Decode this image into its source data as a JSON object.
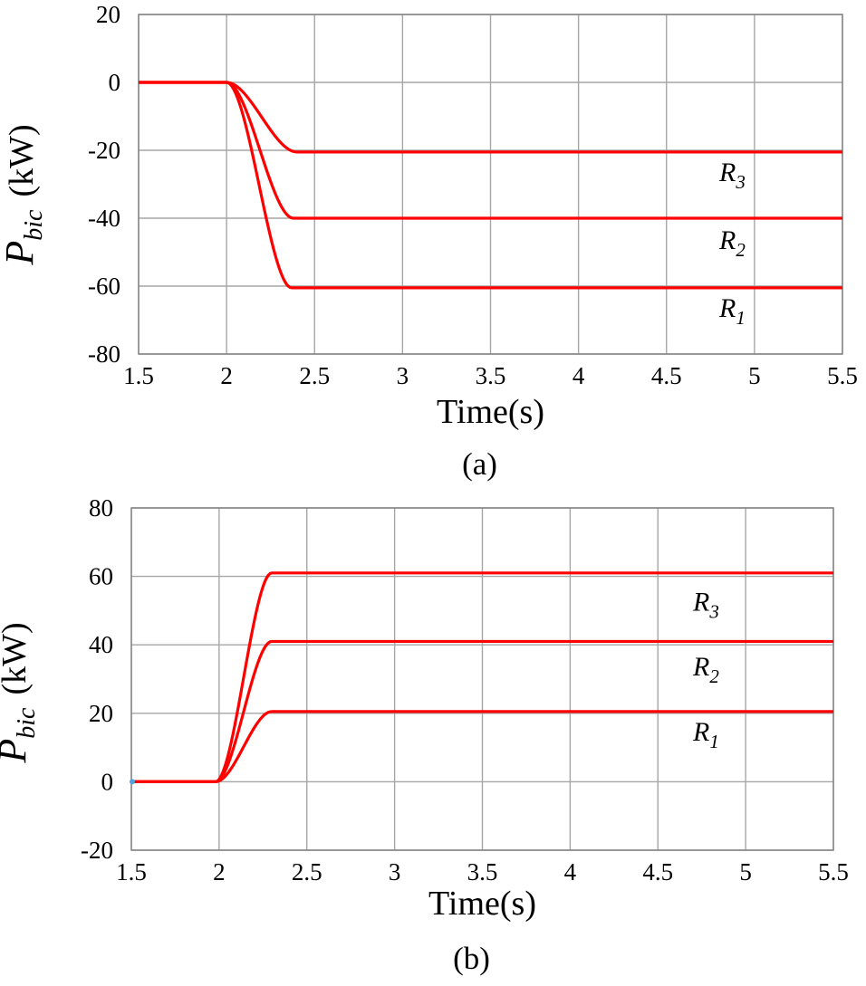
{
  "colors": {
    "series": "#ff0000",
    "grid": "#a6a6a6",
    "start_marker": "#4fa3e0"
  },
  "chart_data": [
    {
      "type": "line",
      "panel": "(a)",
      "xlabel": "Time(s)",
      "ylabel_main": "P",
      "ylabel_sub": "bic",
      "ylabel_unit": "(kW)",
      "xlim": [
        1.5,
        5.5
      ],
      "ylim": [
        -80,
        20
      ],
      "xticks": [
        1.5,
        2,
        2.5,
        3,
        3.5,
        4,
        4.5,
        5,
        5.5
      ],
      "xtick_labels": [
        "1.5",
        "2",
        "2.5",
        "3",
        "3.5",
        "4",
        "4.5",
        "5",
        "5.5"
      ],
      "yticks": [
        20,
        0,
        -20,
        -40,
        -60,
        -80
      ],
      "ytick_labels": [
        "20",
        "0",
        "-20",
        "-40",
        "-60",
        "-80"
      ],
      "grid": true,
      "step_time": 2.0,
      "series": [
        {
          "name": "R1",
          "main": "R",
          "sub": "1",
          "initial": 0,
          "final": -60.5,
          "settle": 2.37,
          "label_x": 4.8,
          "label_y": -69
        },
        {
          "name": "R2",
          "main": "R",
          "sub": "2",
          "initial": 0,
          "final": -40,
          "settle": 2.38,
          "label_x": 4.8,
          "label_y": -49
        },
        {
          "name": "R3",
          "main": "R",
          "sub": "3",
          "initial": 0,
          "final": -20.5,
          "settle": 2.4,
          "label_x": 4.8,
          "label_y": -29
        }
      ]
    },
    {
      "type": "line",
      "panel": "(b)",
      "xlabel": "Time(s)",
      "ylabel_main": "P",
      "ylabel_sub": "bic",
      "ylabel_unit": "(kW)",
      "xlim": [
        1.5,
        5.5
      ],
      "ylim": [
        -20,
        80
      ],
      "xticks": [
        1.5,
        2,
        2.5,
        3,
        3.5,
        4,
        4.5,
        5,
        5.5
      ],
      "xtick_labels": [
        "1.5",
        "2",
        "2.5",
        "3",
        "3.5",
        "4",
        "4.5",
        "5",
        "5.5"
      ],
      "yticks": [
        80,
        60,
        40,
        20,
        0,
        -20
      ],
      "ytick_labels": [
        "80",
        "60",
        "40",
        "20",
        "0",
        "-20"
      ],
      "grid": true,
      "step_time": 1.98,
      "series": [
        {
          "name": "R1",
          "main": "R",
          "sub": "1",
          "initial": 0,
          "final": 20.5,
          "settle": 2.3,
          "label_x": 4.7,
          "label_y": 12
        },
        {
          "name": "R2",
          "main": "R",
          "sub": "2",
          "initial": 0,
          "final": 41,
          "settle": 2.3,
          "label_x": 4.7,
          "label_y": 31
        },
        {
          "name": "R3",
          "main": "R",
          "sub": "3",
          "initial": 0,
          "final": 61,
          "settle": 2.3,
          "label_x": 4.7,
          "label_y": 50
        }
      ]
    }
  ]
}
